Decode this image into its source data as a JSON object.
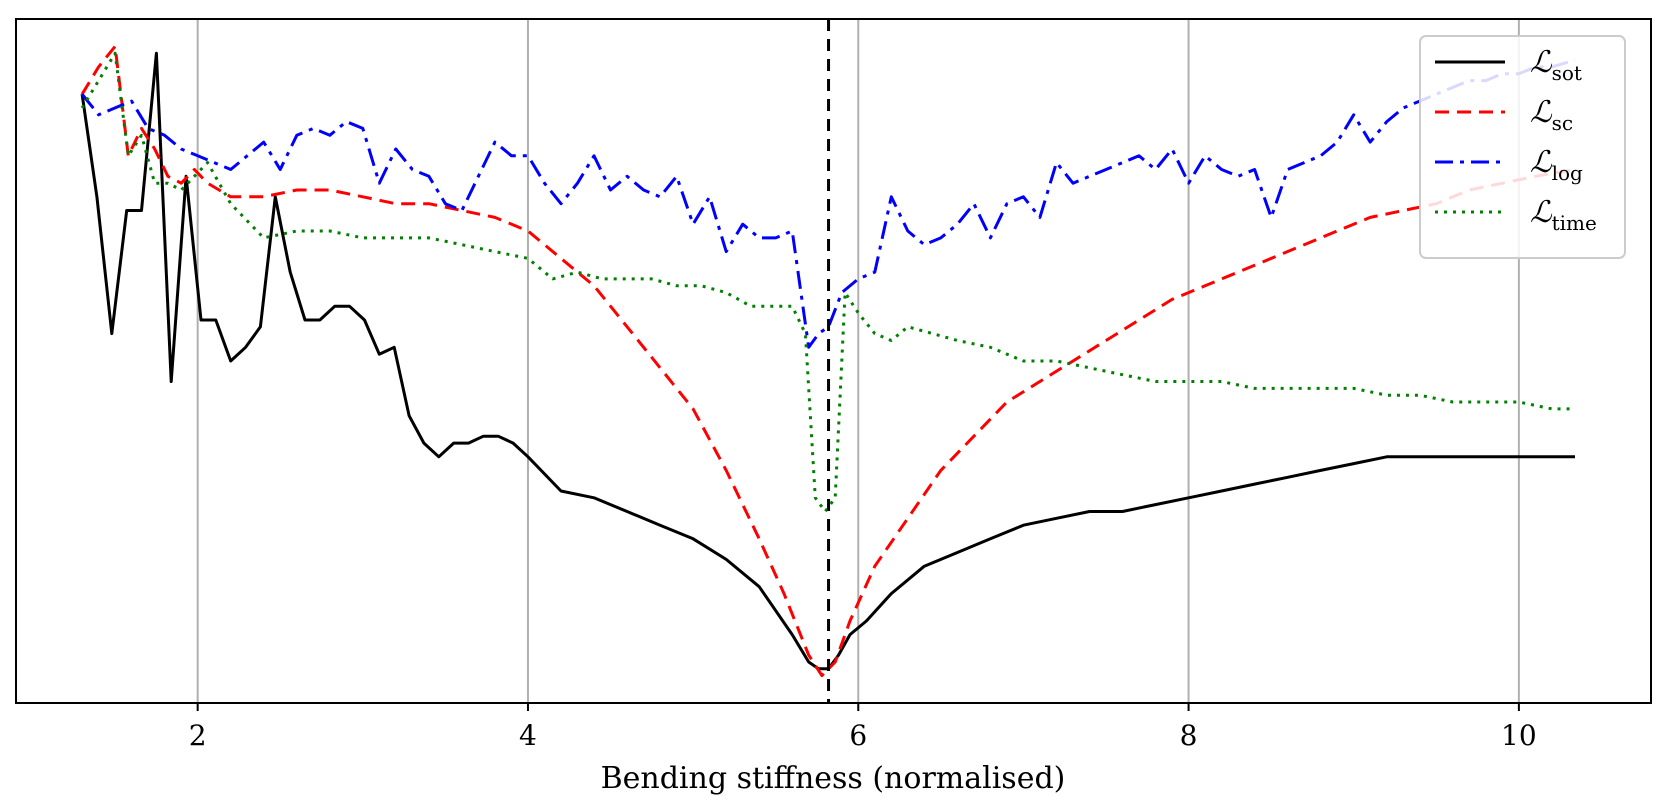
{
  "chart_data": {
    "type": "line",
    "title": "",
    "xlabel": "Bending stiffness (normalised)",
    "ylabel": "",
    "xlim": [
      0.9,
      10.8
    ],
    "ylim": [
      0.0,
      1.0
    ],
    "xticks": [
      2,
      4,
      6,
      8,
      10
    ],
    "xtick_labels": [
      "2",
      "4",
      "6",
      "8",
      "10"
    ],
    "yticks_visible": false,
    "grid": "x",
    "vline": {
      "x": 5.82,
      "style": "dashed",
      "color": "#000000"
    },
    "legend_position": "top-right",
    "series": [
      {
        "name": "sot",
        "legend_main": "ℒ",
        "legend_sub": "sot",
        "color": "#000000",
        "dash": "solid",
        "x": [
          1.3,
          1.39,
          1.48,
          1.57,
          1.66,
          1.75,
          1.84,
          1.93,
          2.02,
          2.11,
          2.2,
          2.29,
          2.38,
          2.47,
          2.56,
          2.65,
          2.74,
          2.83,
          2.92,
          3.01,
          3.1,
          3.19,
          3.28,
          3.37,
          3.46,
          3.55,
          3.64,
          3.73,
          3.82,
          3.91,
          4.0,
          4.2,
          4.4,
          4.6,
          4.8,
          5.0,
          5.2,
          5.4,
          5.6,
          5.7,
          5.76,
          5.82,
          5.88,
          5.95,
          6.05,
          6.2,
          6.4,
          6.6,
          6.8,
          7.0,
          7.2,
          7.4,
          7.6,
          7.8,
          8.0,
          8.2,
          8.4,
          8.6,
          8.8,
          9.0,
          9.2,
          9.4,
          9.6,
          9.8,
          10.0,
          10.2,
          10.34
        ],
        "y": [
          0.89,
          0.74,
          0.54,
          0.72,
          0.72,
          0.95,
          0.47,
          0.77,
          0.56,
          0.56,
          0.5,
          0.52,
          0.55,
          0.74,
          0.63,
          0.56,
          0.56,
          0.58,
          0.58,
          0.56,
          0.51,
          0.52,
          0.42,
          0.38,
          0.36,
          0.38,
          0.38,
          0.39,
          0.39,
          0.38,
          0.36,
          0.31,
          0.3,
          0.28,
          0.26,
          0.24,
          0.21,
          0.17,
          0.1,
          0.06,
          0.05,
          0.05,
          0.07,
          0.1,
          0.12,
          0.16,
          0.2,
          0.22,
          0.24,
          0.26,
          0.27,
          0.28,
          0.28,
          0.29,
          0.3,
          0.31,
          0.32,
          0.33,
          0.34,
          0.35,
          0.36,
          0.36,
          0.36,
          0.36,
          0.36,
          0.36,
          0.36
        ]
      },
      {
        "name": "sc",
        "legend_main": "ℒ",
        "legend_sub": "sc",
        "color": "#ff0000",
        "dash": "dashed",
        "x": [
          1.3,
          1.4,
          1.5,
          1.58,
          1.66,
          1.74,
          1.82,
          1.9,
          1.98,
          2.06,
          2.2,
          2.4,
          2.6,
          2.8,
          3.0,
          3.2,
          3.4,
          3.6,
          3.8,
          4.0,
          4.2,
          4.4,
          4.6,
          4.8,
          5.0,
          5.2,
          5.4,
          5.55,
          5.7,
          5.78,
          5.86,
          5.95,
          6.1,
          6.3,
          6.5,
          6.7,
          6.9,
          7.1,
          7.3,
          7.5,
          7.7,
          7.9,
          8.1,
          8.3,
          8.5,
          8.7,
          8.9,
          9.1,
          9.3,
          9.5,
          9.7,
          9.9,
          10.1,
          10.34
        ],
        "y": [
          0.89,
          0.93,
          0.96,
          0.8,
          0.84,
          0.81,
          0.77,
          0.76,
          0.78,
          0.76,
          0.74,
          0.74,
          0.75,
          0.75,
          0.74,
          0.73,
          0.73,
          0.72,
          0.71,
          0.69,
          0.65,
          0.61,
          0.55,
          0.49,
          0.43,
          0.34,
          0.24,
          0.16,
          0.07,
          0.04,
          0.06,
          0.12,
          0.2,
          0.27,
          0.34,
          0.39,
          0.44,
          0.47,
          0.5,
          0.53,
          0.56,
          0.59,
          0.61,
          0.63,
          0.65,
          0.67,
          0.69,
          0.71,
          0.72,
          0.73,
          0.75,
          0.76,
          0.77,
          0.78
        ]
      },
      {
        "name": "log",
        "legend_main": "ℒ",
        "legend_sub": "log",
        "color": "#0000ff",
        "dash": "dashdot",
        "x": [
          1.3,
          1.4,
          1.5,
          1.6,
          1.7,
          1.8,
          1.9,
          2.0,
          2.1,
          2.2,
          2.3,
          2.4,
          2.5,
          2.6,
          2.7,
          2.8,
          2.9,
          3.0,
          3.1,
          3.2,
          3.3,
          3.4,
          3.5,
          3.6,
          3.7,
          3.8,
          3.9,
          4.0,
          4.1,
          4.2,
          4.3,
          4.4,
          4.5,
          4.6,
          4.7,
          4.8,
          4.9,
          5.0,
          5.1,
          5.2,
          5.3,
          5.4,
          5.5,
          5.6,
          5.7,
          5.76,
          5.82,
          5.9,
          6.0,
          6.1,
          6.2,
          6.3,
          6.4,
          6.5,
          6.6,
          6.7,
          6.8,
          6.9,
          7.0,
          7.1,
          7.2,
          7.3,
          7.4,
          7.5,
          7.6,
          7.7,
          7.8,
          7.9,
          8.0,
          8.1,
          8.2,
          8.3,
          8.4,
          8.5,
          8.6,
          8.7,
          8.8,
          8.9,
          9.0,
          9.1,
          9.2,
          9.3,
          9.4,
          9.5,
          9.6,
          9.7,
          9.8,
          9.9,
          10.0,
          10.1,
          10.2,
          10.34
        ],
        "y": [
          0.89,
          0.86,
          0.87,
          0.88,
          0.84,
          0.83,
          0.81,
          0.8,
          0.79,
          0.78,
          0.8,
          0.82,
          0.78,
          0.83,
          0.84,
          0.83,
          0.85,
          0.84,
          0.76,
          0.81,
          0.78,
          0.77,
          0.73,
          0.72,
          0.77,
          0.82,
          0.8,
          0.8,
          0.76,
          0.73,
          0.76,
          0.8,
          0.75,
          0.77,
          0.75,
          0.74,
          0.77,
          0.7,
          0.74,
          0.66,
          0.7,
          0.68,
          0.68,
          0.69,
          0.52,
          0.54,
          0.55,
          0.6,
          0.62,
          0.63,
          0.74,
          0.69,
          0.67,
          0.68,
          0.7,
          0.73,
          0.68,
          0.73,
          0.74,
          0.71,
          0.79,
          0.76,
          0.77,
          0.78,
          0.79,
          0.8,
          0.78,
          0.81,
          0.76,
          0.8,
          0.78,
          0.77,
          0.78,
          0.71,
          0.78,
          0.79,
          0.8,
          0.82,
          0.86,
          0.82,
          0.85,
          0.87,
          0.88,
          0.89,
          0.9,
          0.91,
          0.91,
          0.92,
          0.92,
          0.93,
          0.93,
          0.94
        ]
      },
      {
        "name": "time",
        "legend_main": "ℒ",
        "legend_sub": "time",
        "color": "#008000",
        "dash": "dotted",
        "x": [
          1.3,
          1.4,
          1.5,
          1.58,
          1.66,
          1.74,
          1.82,
          1.9,
          1.98,
          2.06,
          2.2,
          2.4,
          2.6,
          2.8,
          3.0,
          3.2,
          3.4,
          3.6,
          3.8,
          4.0,
          4.15,
          4.3,
          4.45,
          4.6,
          4.75,
          4.9,
          5.05,
          5.2,
          5.35,
          5.5,
          5.6,
          5.68,
          5.74,
          5.8,
          5.86,
          5.92,
          6.0,
          6.1,
          6.2,
          6.3,
          6.45,
          6.6,
          6.8,
          7.0,
          7.2,
          7.4,
          7.6,
          7.8,
          8.0,
          8.2,
          8.4,
          8.6,
          8.8,
          9.0,
          9.2,
          9.4,
          9.6,
          9.8,
          10.0,
          10.2,
          10.34
        ],
        "y": [
          0.87,
          0.91,
          0.95,
          0.8,
          0.83,
          0.76,
          0.76,
          0.75,
          0.77,
          0.79,
          0.73,
          0.68,
          0.69,
          0.69,
          0.68,
          0.68,
          0.68,
          0.67,
          0.66,
          0.65,
          0.62,
          0.63,
          0.62,
          0.62,
          0.62,
          0.61,
          0.61,
          0.6,
          0.58,
          0.58,
          0.58,
          0.54,
          0.3,
          0.28,
          0.3,
          0.6,
          0.57,
          0.54,
          0.53,
          0.55,
          0.54,
          0.53,
          0.52,
          0.5,
          0.5,
          0.49,
          0.48,
          0.47,
          0.47,
          0.47,
          0.46,
          0.46,
          0.46,
          0.46,
          0.45,
          0.45,
          0.44,
          0.44,
          0.44,
          0.43,
          0.43
        ]
      }
    ]
  }
}
